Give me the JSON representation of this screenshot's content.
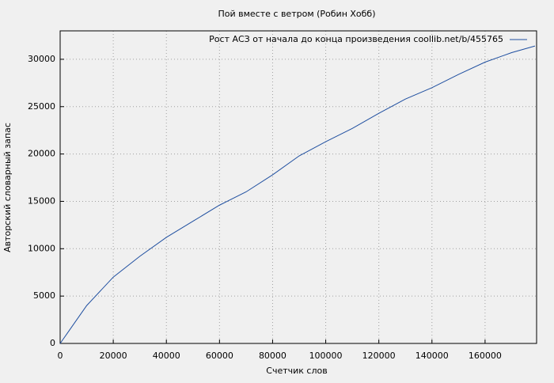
{
  "chart_data": {
    "type": "line",
    "title": "Пой вместе с ветром (Робин Хобб)",
    "x_label": "Счетчик слов",
    "y_label": "Авторский словарный запас",
    "x": [
      0,
      2500,
      5000,
      7500,
      10000,
      20000,
      30000,
      40000,
      50000,
      60000,
      70000,
      80000,
      90000,
      100000,
      110000,
      120000,
      130000,
      140000,
      150000,
      160000,
      170000,
      178800
    ],
    "series": [
      {
        "name": "Рост АСЗ от начала до конца произведения coollib.net/b/455765",
        "color": "#1f4fa0",
        "values": [
          0,
          1000,
          2000,
          3000,
          4000,
          7000,
          9200,
          11200,
          12900,
          14600,
          16000,
          17800,
          19800,
          21300,
          22700,
          24300,
          25800,
          27000,
          28400,
          29700,
          30700,
          31400
        ]
      }
    ],
    "xlim": [
      0,
      179400
    ],
    "ylim": [
      0,
      33000
    ],
    "xticks": [
      0,
      20000,
      40000,
      60000,
      80000,
      100000,
      120000,
      140000,
      160000
    ],
    "yticks": [
      0,
      5000,
      10000,
      15000,
      20000,
      25000,
      30000
    ],
    "grid": true,
    "legend": "top-right"
  }
}
